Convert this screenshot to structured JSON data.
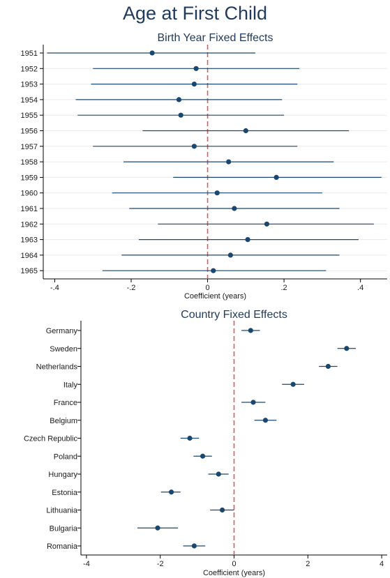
{
  "page": {
    "title": "Age at First Child"
  },
  "chart_data": [
    {
      "type": "scatter",
      "subtype": "coefficient-plot",
      "title": "Birth Year Fixed Effects",
      "xlabel": "Coefficient (years)",
      "ylabel": "",
      "xlim": [
        -0.43,
        0.47
      ],
      "xticks": [
        -0.4,
        -0.2,
        0,
        0.2,
        0.4
      ],
      "xtick_labels": [
        "-.4",
        "-.2",
        "0",
        ".2",
        ".4"
      ],
      "reference_line": 0,
      "grid": true,
      "categories": [
        "1951",
        "1952",
        "1953",
        "1954",
        "1955",
        "1956",
        "1957",
        "1958",
        "1959",
        "1960",
        "1961",
        "1962",
        "1963",
        "1964",
        "1965"
      ],
      "estimates": [
        -0.145,
        -0.03,
        -0.035,
        -0.075,
        -0.07,
        0.1,
        -0.035,
        0.055,
        0.18,
        0.025,
        0.07,
        0.155,
        0.105,
        0.06,
        0.015
      ],
      "ci_low": [
        -0.42,
        -0.3,
        -0.305,
        -0.345,
        -0.34,
        -0.17,
        -0.3,
        -0.22,
        -0.09,
        -0.25,
        -0.205,
        -0.13,
        -0.18,
        -0.225,
        -0.275
      ],
      "ci_high": [
        0.125,
        0.24,
        0.235,
        0.195,
        0.2,
        0.37,
        0.235,
        0.33,
        0.455,
        0.3,
        0.345,
        0.435,
        0.395,
        0.345,
        0.31
      ],
      "colors": {
        "marker": "#1a476f",
        "ci": "#1a476f",
        "reference": "#e0575c",
        "grid": "#eaeaea"
      }
    },
    {
      "type": "scatter",
      "subtype": "coefficient-plot",
      "title": "Country Fixed Effects",
      "xlabel": "Coefficient (years)",
      "ylabel": "",
      "xlim": [
        -4.15,
        4.15
      ],
      "xticks": [
        -4,
        -2,
        0,
        2,
        4
      ],
      "xtick_labels": [
        "-4",
        "-2",
        "0",
        "2",
        "4"
      ],
      "reference_line": 0,
      "grid": false,
      "categories": [
        "Germany",
        "Sweden",
        "Netherlands",
        "Italy",
        "France",
        "Belgium",
        "Czech Republic",
        "Poland",
        "Hungary",
        "Estonia",
        "Lithuania",
        "Bulgaria",
        "Romania"
      ],
      "estimates": [
        0.45,
        3.05,
        2.55,
        1.6,
        0.52,
        0.85,
        -1.2,
        -0.85,
        -0.42,
        -1.7,
        -0.32,
        -2.07,
        -1.08
      ],
      "ci_low": [
        0.2,
        2.8,
        2.3,
        1.3,
        0.2,
        0.55,
        -1.45,
        -1.1,
        -0.7,
        -1.98,
        -0.65,
        -2.62,
        -1.38
      ],
      "ci_high": [
        0.7,
        3.3,
        2.8,
        1.9,
        0.85,
        1.15,
        -0.95,
        -0.6,
        -0.15,
        -1.45,
        0.0,
        -1.52,
        -0.78
      ],
      "colors": {
        "marker": "#1a476f",
        "ci": "#1a476f",
        "reference": "#e0575c",
        "grid": "#eaeaea"
      }
    }
  ]
}
